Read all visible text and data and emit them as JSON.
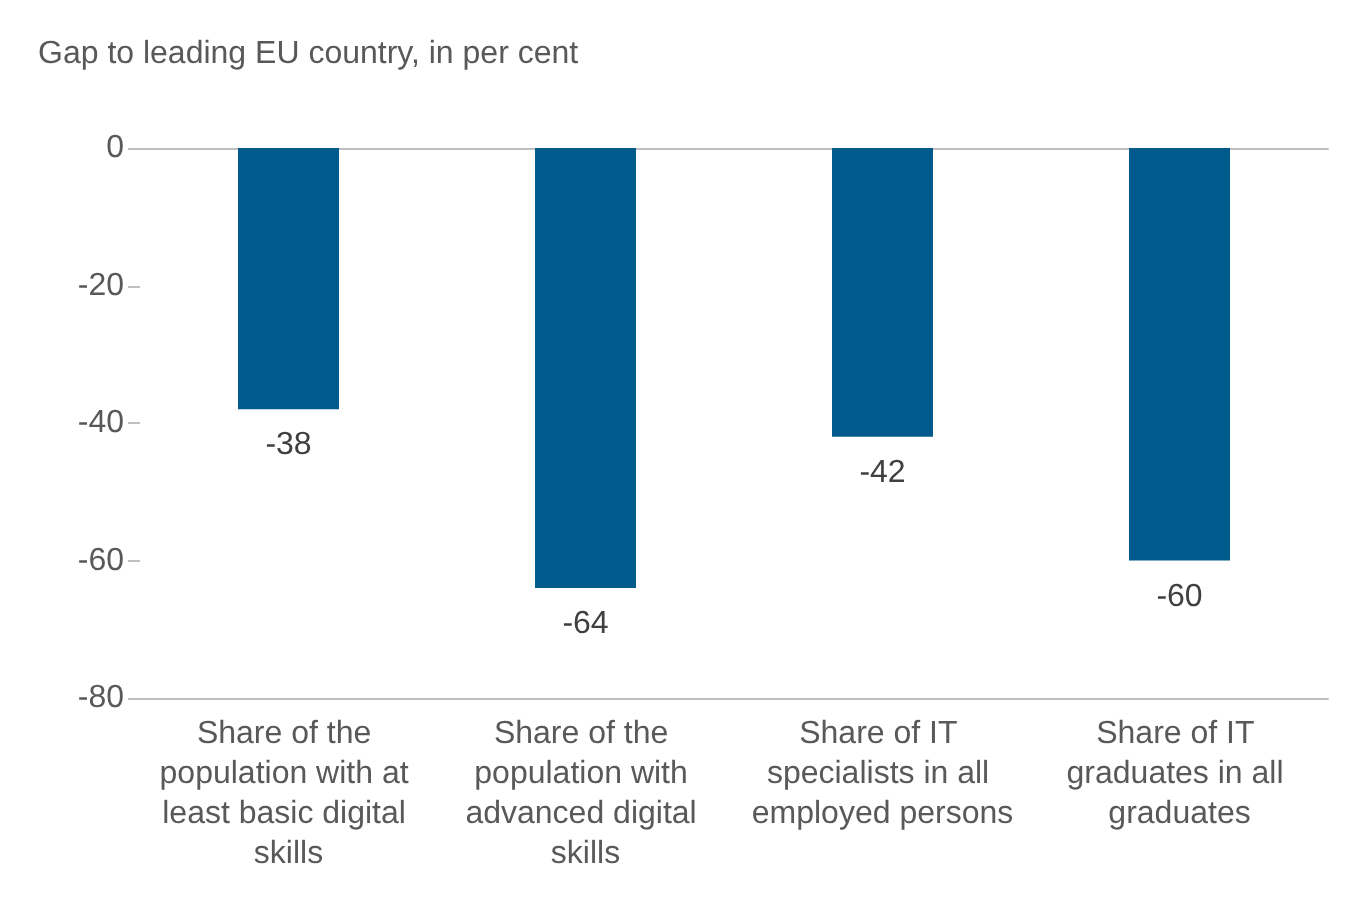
{
  "chart_data": {
    "type": "bar",
    "title": "Gap to leading EU country, in per cent",
    "categories": [
      "Share of the population with at least basic digital skills",
      "Share of the population with advanced digital skills",
      "Share of IT specialists in all employed persons",
      "Share of IT graduates in all graduates"
    ],
    "values": [
      -38,
      -64,
      -42,
      -60
    ],
    "color": "#005a8c",
    "ylim": [
      -80,
      0
    ],
    "yticks": [
      -80,
      -60,
      -40,
      -20,
      0
    ],
    "grid": false,
    "data_labels": true
  }
}
